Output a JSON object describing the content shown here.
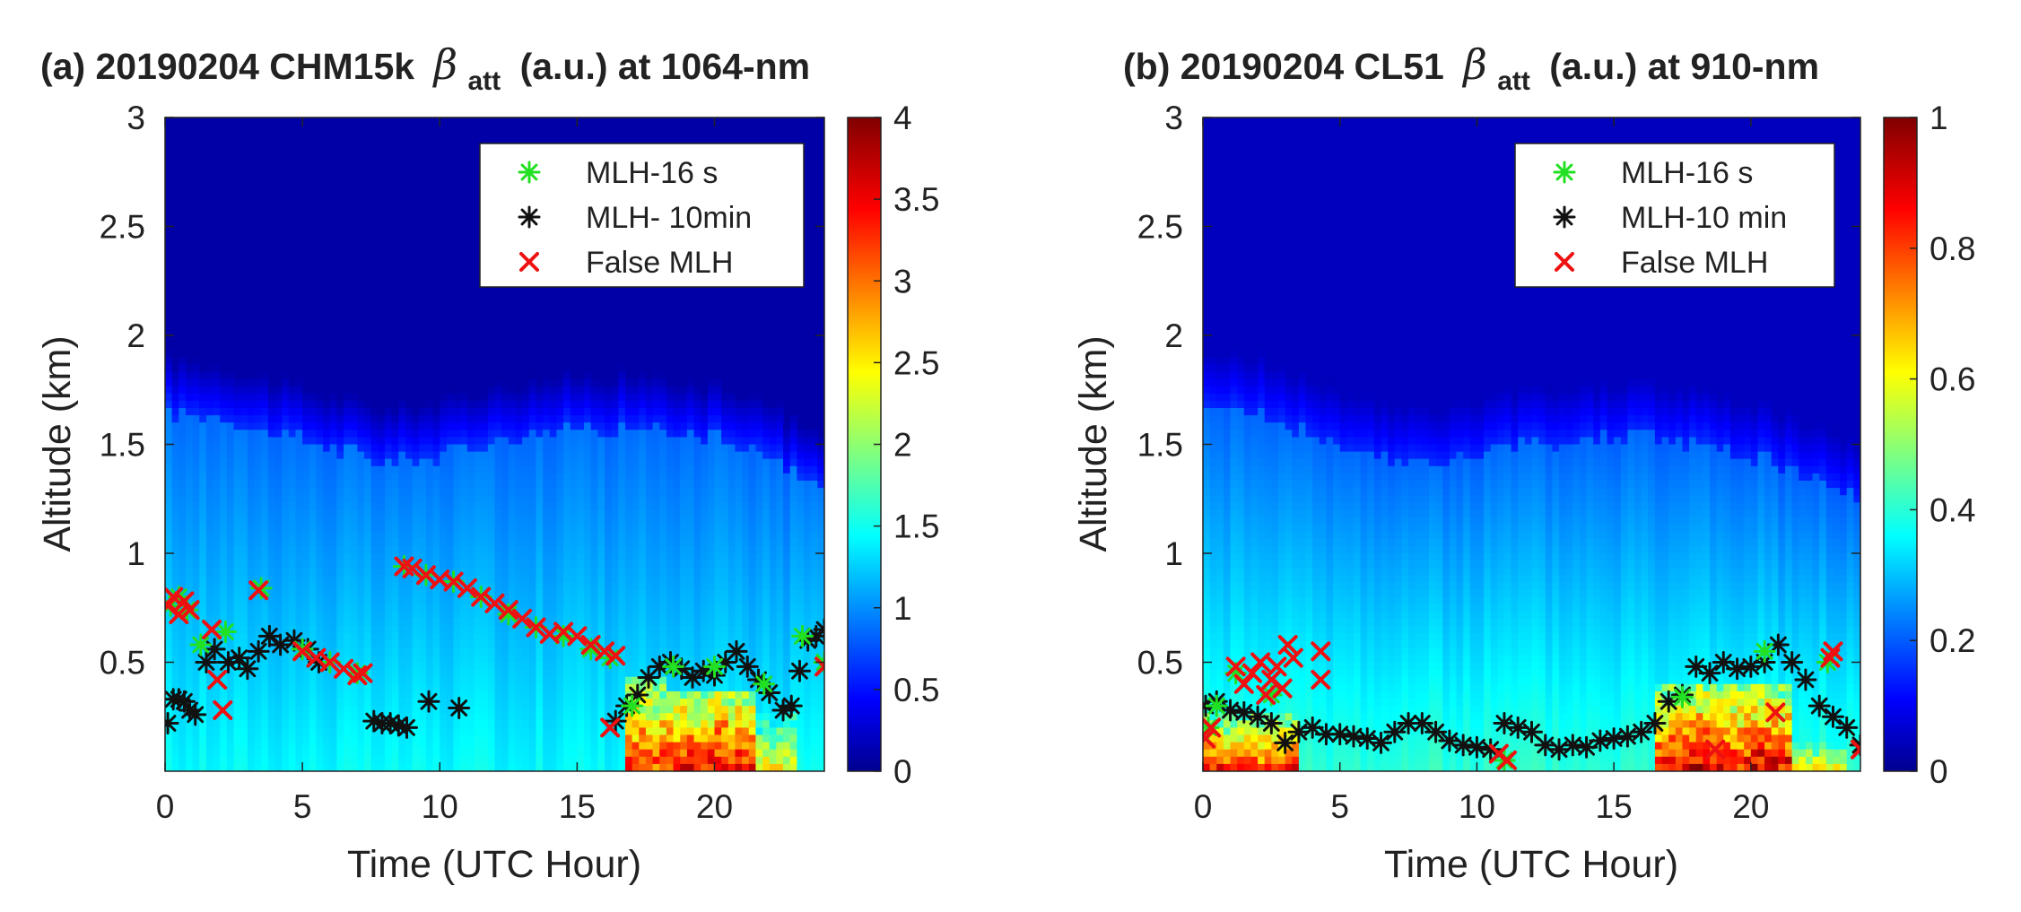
{
  "figure": {
    "domain": "lidar backscatter comparison"
  },
  "chart_data": [
    {
      "type": "heatmap",
      "id": "a",
      "title_prefix": "(a) 20190204 CHM15k",
      "title_symbol": "β",
      "title_subscript": "att",
      "title_suffix": "(a.u.) at 1064-nm",
      "xlabel": "Time (UTC Hour)",
      "ylabel": "Altitude (km)",
      "xlim": [
        0,
        24
      ],
      "ylim": [
        0,
        3
      ],
      "xticks": [
        0,
        5,
        10,
        15,
        20
      ],
      "xtick_labels": [
        "0",
        "5",
        "10",
        "15",
        "20"
      ],
      "yticks": [
        0.5,
        1,
        1.5,
        2,
        2.5,
        3
      ],
      "ytick_labels": [
        "0.5",
        "1",
        "1.5",
        "2",
        "2.5",
        "3"
      ],
      "colorbar": {
        "range": [
          0,
          4
        ],
        "ticks": [
          0,
          0.5,
          1,
          1.5,
          2,
          2.5,
          3,
          3.5,
          4
        ],
        "tick_labels": [
          "0",
          "0.5",
          "1",
          "1.5",
          "2",
          "2.5",
          "3",
          "3.5",
          "4"
        ],
        "colormap": "jet"
      },
      "field": {
        "background": 0.15,
        "aerosol_layer_top_km": [
          [
            0,
            1.65
          ],
          [
            2,
            1.62
          ],
          [
            4,
            1.55
          ],
          [
            6,
            1.48
          ],
          [
            8,
            1.42
          ],
          [
            10,
            1.45
          ],
          [
            12,
            1.52
          ],
          [
            14,
            1.56
          ],
          [
            16,
            1.58
          ],
          [
            18,
            1.56
          ],
          [
            20,
            1.52
          ],
          [
            22,
            1.45
          ],
          [
            23,
            1.35
          ],
          [
            24,
            1.3
          ]
        ],
        "aerosol_layer_value": 1.25,
        "surface_layer_value": 1.5,
        "hot_regions": [
          {
            "t0": 16.8,
            "t1": 18.2,
            "h_top": 0.42,
            "value": 3.4
          },
          {
            "t0": 18.2,
            "t1": 21.5,
            "h_top": 0.38,
            "value": 3.6
          },
          {
            "t0": 21.5,
            "t1": 23.0,
            "h_top": 0.25,
            "value": 2.6
          }
        ]
      },
      "legend": {
        "position": "top-right",
        "entries": [
          {
            "label": "MLH-16 s",
            "marker": "asterisk",
            "color": "#22e022"
          },
          {
            "label": "MLH- 10min",
            "marker": "asterisk",
            "color": "#111111"
          },
          {
            "label": "False MLH",
            "marker": "x",
            "color": "#ee1111"
          }
        ]
      },
      "series": [
        {
          "name": "MLH- 10min",
          "marker": "asterisk",
          "color": "#111111",
          "x": [
            0.1,
            0.3,
            0.5,
            0.7,
            0.9,
            1.1,
            1.5,
            1.8,
            2.3,
            2.7,
            3.0,
            3.4,
            3.8,
            4.2,
            4.7,
            5.2,
            5.6,
            7.6,
            7.9,
            8.2,
            8.5,
            8.8,
            9.6,
            10.7,
            16.4,
            16.8,
            17.2,
            17.6,
            18.0,
            18.4,
            18.8,
            19.2,
            19.6,
            20.0,
            20.4,
            20.8,
            21.2,
            21.6,
            22.0,
            22.5,
            22.8,
            23.1,
            23.4,
            23.7,
            24.0
          ],
          "y": [
            0.22,
            0.33,
            0.33,
            0.32,
            0.28,
            0.26,
            0.5,
            0.56,
            0.5,
            0.52,
            0.47,
            0.55,
            0.62,
            0.58,
            0.6,
            0.56,
            0.5,
            0.23,
            0.22,
            0.22,
            0.21,
            0.2,
            0.32,
            0.29,
            0.23,
            0.3,
            0.35,
            0.43,
            0.48,
            0.5,
            0.47,
            0.43,
            0.46,
            0.44,
            0.5,
            0.55,
            0.48,
            0.42,
            0.36,
            0.28,
            0.3,
            0.46,
            0.6,
            0.62,
            0.65
          ]
        },
        {
          "name": "MLH-16 s",
          "marker": "asterisk",
          "color": "#22e022",
          "x": [
            0.2,
            0.5,
            0.8,
            1.3,
            2.2,
            3.5,
            5.0,
            6.0,
            7.0,
            8.7,
            9.5,
            10.5,
            11.5,
            12.5,
            13.5,
            14.5,
            15.5,
            16.2,
            17.0,
            18.5,
            20.0,
            21.8,
            23.2,
            24.0
          ],
          "y": [
            0.76,
            0.8,
            0.74,
            0.58,
            0.64,
            0.84,
            0.56,
            0.5,
            0.45,
            0.94,
            0.9,
            0.87,
            0.8,
            0.72,
            0.66,
            0.62,
            0.56,
            0.52,
            0.3,
            0.48,
            0.48,
            0.4,
            0.62,
            0.5
          ]
        },
        {
          "name": "False MLH",
          "marker": "x",
          "color": "#ee1111",
          "x": [
            0.1,
            0.3,
            0.5,
            0.7,
            0.9,
            1.7,
            1.9,
            2.1,
            3.4,
            5.0,
            5.5,
            6.0,
            6.5,
            7.0,
            7.2,
            8.7,
            9.0,
            9.5,
            10.0,
            10.5,
            11.0,
            11.5,
            12.0,
            12.5,
            13.0,
            13.5,
            14.0,
            14.5,
            15.0,
            15.5,
            16.0,
            16.4,
            16.2,
            24.0
          ],
          "y": [
            0.76,
            0.8,
            0.72,
            0.78,
            0.74,
            0.65,
            0.42,
            0.28,
            0.83,
            0.55,
            0.52,
            0.5,
            0.47,
            0.44,
            0.45,
            0.94,
            0.93,
            0.9,
            0.88,
            0.87,
            0.84,
            0.8,
            0.77,
            0.74,
            0.7,
            0.66,
            0.63,
            0.64,
            0.62,
            0.58,
            0.55,
            0.53,
            0.2,
            0.48
          ]
        }
      ]
    },
    {
      "type": "heatmap",
      "id": "b",
      "title_prefix": "(b) 20190204 CL51",
      "title_symbol": "β",
      "title_subscript": "att",
      "title_suffix": "(a.u.) at 910-nm",
      "xlabel": "Time (UTC Hour)",
      "ylabel": "Altitude (km)",
      "xlim": [
        0,
        24
      ],
      "ylim": [
        0,
        3
      ],
      "xticks": [
        0,
        5,
        10,
        15,
        20
      ],
      "xtick_labels": [
        "0",
        "5",
        "10",
        "15",
        "20"
      ],
      "yticks": [
        0.5,
        1,
        1.5,
        2,
        2.5,
        3
      ],
      "ytick_labels": [
        "0.5",
        "1",
        "1.5",
        "2",
        "2.5",
        "3"
      ],
      "colorbar": {
        "range": [
          0,
          1
        ],
        "ticks": [
          0,
          0.2,
          0.4,
          0.6,
          0.8,
          1
        ],
        "tick_labels": [
          "0",
          "0.2",
          "0.4",
          "0.6",
          "0.8",
          "1"
        ],
        "colormap": "jet"
      },
      "field": {
        "background": 0.06,
        "aerosol_layer_top_km": [
          [
            0,
            1.7
          ],
          [
            2,
            1.65
          ],
          [
            4,
            1.55
          ],
          [
            6,
            1.45
          ],
          [
            8,
            1.4
          ],
          [
            10,
            1.45
          ],
          [
            12,
            1.5
          ],
          [
            14,
            1.52
          ],
          [
            16,
            1.55
          ],
          [
            18,
            1.5
          ],
          [
            20,
            1.45
          ],
          [
            22,
            1.35
          ],
          [
            24,
            1.25
          ]
        ],
        "aerosol_layer_value": 0.3,
        "surface_layer_value": 0.42,
        "hot_regions": [
          {
            "t0": 0.0,
            "t1": 3.5,
            "h_top": 0.25,
            "value": 0.85
          },
          {
            "t0": 16.5,
            "t1": 21.5,
            "h_top": 0.4,
            "value": 0.9
          },
          {
            "t0": 21.5,
            "t1": 23.5,
            "h_top": 0.12,
            "value": 0.7
          }
        ]
      },
      "legend": {
        "position": "top-right",
        "entries": [
          {
            "label": "MLH-16 s",
            "marker": "asterisk",
            "color": "#22e022"
          },
          {
            "label": "MLH-10 min",
            "marker": "asterisk",
            "color": "#111111"
          },
          {
            "label": "False MLH",
            "marker": "x",
            "color": "#ee1111"
          }
        ]
      },
      "series": [
        {
          "name": "MLH-10 min",
          "marker": "asterisk",
          "color": "#111111",
          "x": [
            0.1,
            0.5,
            1.0,
            1.5,
            2.0,
            2.5,
            3.0,
            3.5,
            4.0,
            4.5,
            5.0,
            5.5,
            6.0,
            6.5,
            7.0,
            7.5,
            8.0,
            8.5,
            9.0,
            9.5,
            10.0,
            10.5,
            11.0,
            11.5,
            12.0,
            12.5,
            13.0,
            13.5,
            14.0,
            14.5,
            15.0,
            15.5,
            16.0,
            16.5,
            17.0,
            17.5,
            18.0,
            18.5,
            19.0,
            19.5,
            20.0,
            20.5,
            21.0,
            21.5,
            22.0,
            22.5,
            23.0,
            23.5,
            24.0
          ],
          "y": [
            0.3,
            0.32,
            0.28,
            0.27,
            0.25,
            0.22,
            0.13,
            0.18,
            0.2,
            0.17,
            0.17,
            0.16,
            0.15,
            0.13,
            0.18,
            0.22,
            0.22,
            0.18,
            0.14,
            0.12,
            0.11,
            0.1,
            0.22,
            0.2,
            0.18,
            0.12,
            0.1,
            0.12,
            0.11,
            0.14,
            0.15,
            0.16,
            0.18,
            0.22,
            0.32,
            0.35,
            0.48,
            0.45,
            0.5,
            0.47,
            0.48,
            0.5,
            0.58,
            0.5,
            0.42,
            0.3,
            0.25,
            0.2,
            0.12
          ]
        },
        {
          "name": "MLH-16 s",
          "marker": "asterisk",
          "color": "#22e022",
          "x": [
            0.2,
            0.5,
            1.2,
            2.5,
            11.0,
            17.5,
            20.5,
            22.8
          ],
          "y": [
            0.2,
            0.3,
            0.45,
            0.35,
            0.05,
            0.34,
            0.55,
            0.5
          ]
        },
        {
          "name": "False MLH",
          "marker": "x",
          "color": "#ee1111",
          "x": [
            0.1,
            0.3,
            1.2,
            1.5,
            1.8,
            2.1,
            2.3,
            2.5,
            2.7,
            2.9,
            3.1,
            3.3,
            4.3,
            4.3,
            10.8,
            11.1,
            18.7,
            20.9,
            22.9,
            23.0,
            24.0
          ],
          "y": [
            0.15,
            0.2,
            0.48,
            0.4,
            0.45,
            0.5,
            0.35,
            0.42,
            0.48,
            0.38,
            0.58,
            0.52,
            0.55,
            0.42,
            0.08,
            0.05,
            0.1,
            0.27,
            0.52,
            0.55,
            0.1
          ]
        }
      ]
    }
  ]
}
